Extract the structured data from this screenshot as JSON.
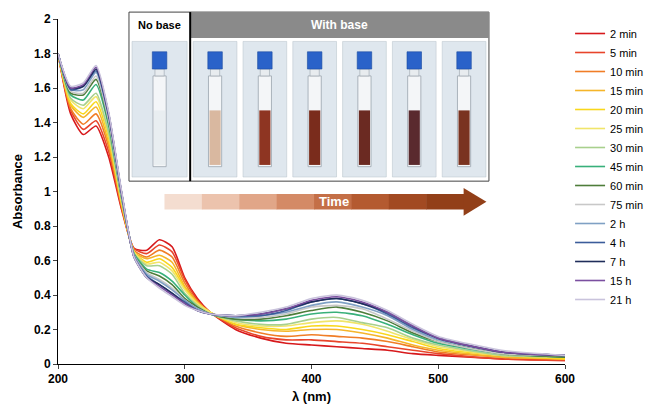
{
  "chart_data": {
    "type": "line",
    "x_label": "λ (nm)",
    "y_label": "Absorbance",
    "xlim": [
      200,
      600
    ],
    "ylim": [
      0,
      2
    ],
    "xticks": [
      200,
      300,
      400,
      500,
      600
    ],
    "yticks": [
      0,
      0.2,
      0.4,
      0.6,
      0.8,
      1,
      1.2,
      1.4,
      1.6,
      1.8,
      2
    ],
    "grid": false,
    "legend": "right",
    "annotations": [
      "No base",
      "With base",
      "Time"
    ],
    "x": [
      200,
      210,
      220,
      230,
      240,
      250,
      260,
      270,
      280,
      290,
      300,
      310,
      320,
      340,
      360,
      380,
      400,
      420,
      440,
      460,
      480,
      500,
      550,
      600
    ],
    "series": [
      {
        "name": "2 min",
        "color": "#d7191c",
        "values": [
          1.8,
          1.45,
          1.33,
          1.38,
          1.2,
          0.9,
          0.67,
          0.66,
          0.72,
          0.68,
          0.5,
          0.38,
          0.3,
          0.2,
          0.15,
          0.12,
          0.11,
          0.1,
          0.09,
          0.08,
          0.06,
          0.05,
          0.03,
          0.02
        ]
      },
      {
        "name": "5 min",
        "color": "#e8452b",
        "values": [
          1.8,
          1.47,
          1.36,
          1.41,
          1.23,
          0.91,
          0.67,
          0.64,
          0.69,
          0.65,
          0.49,
          0.37,
          0.3,
          0.21,
          0.16,
          0.14,
          0.14,
          0.13,
          0.12,
          0.1,
          0.08,
          0.06,
          0.03,
          0.02
        ]
      },
      {
        "name": "10 min",
        "color": "#f07d26",
        "values": [
          1.8,
          1.48,
          1.39,
          1.45,
          1.26,
          0.92,
          0.66,
          0.62,
          0.66,
          0.62,
          0.47,
          0.36,
          0.3,
          0.22,
          0.18,
          0.16,
          0.17,
          0.16,
          0.15,
          0.13,
          0.1,
          0.07,
          0.04,
          0.03
        ]
      },
      {
        "name": "15 min",
        "color": "#f5b52a",
        "values": [
          1.8,
          1.5,
          1.43,
          1.49,
          1.28,
          0.93,
          0.65,
          0.61,
          0.63,
          0.59,
          0.45,
          0.36,
          0.3,
          0.23,
          0.2,
          0.19,
          0.2,
          0.2,
          0.18,
          0.15,
          0.11,
          0.08,
          0.04,
          0.03
        ]
      },
      {
        "name": "20 min",
        "color": "#f9d71c",
        "values": [
          1.8,
          1.51,
          1.45,
          1.52,
          1.31,
          0.94,
          0.65,
          0.59,
          0.61,
          0.56,
          0.44,
          0.35,
          0.3,
          0.23,
          0.21,
          0.2,
          0.22,
          0.22,
          0.2,
          0.17,
          0.13,
          0.09,
          0.05,
          0.03
        ]
      },
      {
        "name": "25 min",
        "color": "#f0e56a",
        "values": [
          1.8,
          1.53,
          1.48,
          1.55,
          1.33,
          0.95,
          0.65,
          0.58,
          0.59,
          0.54,
          0.43,
          0.35,
          0.3,
          0.24,
          0.22,
          0.22,
          0.24,
          0.25,
          0.23,
          0.19,
          0.14,
          0.1,
          0.05,
          0.04
        ]
      },
      {
        "name": "30 min",
        "color": "#a8d08d",
        "values": [
          1.8,
          1.54,
          1.5,
          1.57,
          1.34,
          0.96,
          0.64,
          0.57,
          0.57,
          0.52,
          0.41,
          0.34,
          0.29,
          0.25,
          0.23,
          0.23,
          0.26,
          0.27,
          0.24,
          0.21,
          0.15,
          0.11,
          0.05,
          0.04
        ]
      },
      {
        "name": "45 min",
        "color": "#38b07a",
        "values": [
          1.8,
          1.56,
          1.53,
          1.62,
          1.38,
          0.97,
          0.64,
          0.55,
          0.53,
          0.48,
          0.4,
          0.33,
          0.29,
          0.26,
          0.25,
          0.26,
          0.29,
          0.3,
          0.28,
          0.23,
          0.17,
          0.12,
          0.06,
          0.04
        ]
      },
      {
        "name": "60 min",
        "color": "#4e7d3a",
        "values": [
          1.8,
          1.57,
          1.56,
          1.65,
          1.4,
          0.98,
          0.63,
          0.54,
          0.51,
          0.46,
          0.38,
          0.33,
          0.29,
          0.26,
          0.26,
          0.28,
          0.31,
          0.33,
          0.3,
          0.25,
          0.18,
          0.13,
          0.06,
          0.04
        ]
      },
      {
        "name": "75 min",
        "color": "#c8c8c8",
        "values": [
          1.8,
          1.58,
          1.57,
          1.67,
          1.41,
          0.98,
          0.63,
          0.53,
          0.49,
          0.44,
          0.37,
          0.32,
          0.29,
          0.27,
          0.27,
          0.29,
          0.33,
          0.34,
          0.32,
          0.26,
          0.19,
          0.13,
          0.06,
          0.05
        ]
      },
      {
        "name": "2 h",
        "color": "#7fa0c4",
        "values": [
          1.8,
          1.59,
          1.59,
          1.69,
          1.43,
          0.99,
          0.63,
          0.52,
          0.48,
          0.43,
          0.37,
          0.32,
          0.29,
          0.27,
          0.28,
          0.3,
          0.34,
          0.36,
          0.33,
          0.28,
          0.2,
          0.14,
          0.07,
          0.05
        ]
      },
      {
        "name": "4 h",
        "color": "#3b5c9a",
        "values": [
          1.8,
          1.59,
          1.61,
          1.7,
          1.44,
          1,
          0.62,
          0.51,
          0.46,
          0.41,
          0.36,
          0.31,
          0.29,
          0.28,
          0.28,
          0.31,
          0.36,
          0.38,
          0.35,
          0.29,
          0.21,
          0.15,
          0.07,
          0.05
        ]
      },
      {
        "name": "7 h",
        "color": "#1f2d5a",
        "values": [
          1.8,
          1.6,
          1.61,
          1.71,
          1.45,
          1,
          0.62,
          0.5,
          0.46,
          0.41,
          0.35,
          0.31,
          0.29,
          0.28,
          0.29,
          0.32,
          0.36,
          0.38,
          0.35,
          0.3,
          0.22,
          0.15,
          0.07,
          0.05
        ]
      },
      {
        "name": "15 h",
        "color": "#7b4fa0",
        "values": [
          1.8,
          1.6,
          1.62,
          1.72,
          1.45,
          1,
          0.62,
          0.5,
          0.45,
          0.4,
          0.35,
          0.31,
          0.29,
          0.28,
          0.29,
          0.32,
          0.37,
          0.39,
          0.36,
          0.3,
          0.22,
          0.15,
          0.07,
          0.05
        ]
      },
      {
        "name": "21 h",
        "color": "#c9c3dc",
        "values": [
          1.8,
          1.61,
          1.63,
          1.73,
          1.46,
          1.01,
          0.62,
          0.5,
          0.44,
          0.39,
          0.34,
          0.31,
          0.29,
          0.28,
          0.3,
          0.33,
          0.38,
          0.4,
          0.37,
          0.31,
          0.23,
          0.16,
          0.08,
          0.05
        ]
      }
    ]
  }
}
